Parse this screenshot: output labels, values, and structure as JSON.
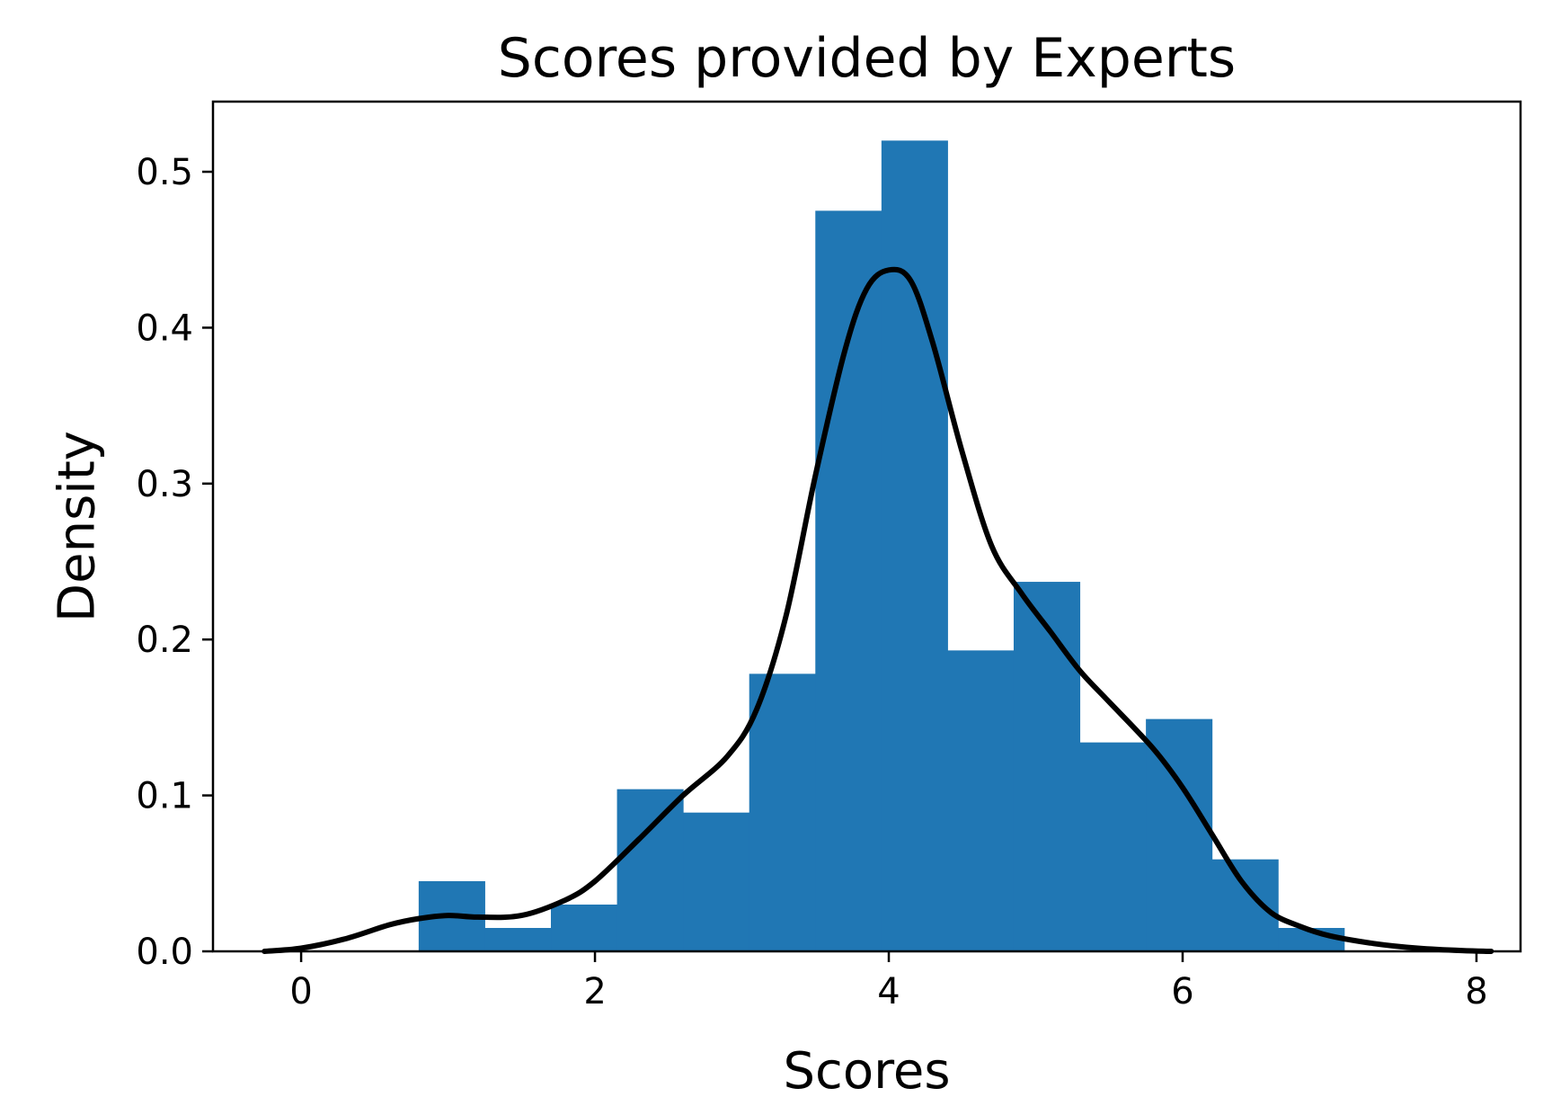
{
  "chart_data": {
    "type": "bar",
    "title": "Scores provided by Experts",
    "xlabel": "Scores",
    "ylabel": "Density",
    "xlim": [
      -0.6,
      8.3
    ],
    "ylim": [
      0,
      0.545
    ],
    "xticks": [
      0,
      2,
      4,
      6,
      8
    ],
    "xtick_labels": [
      "0",
      "2",
      "4",
      "6",
      "8"
    ],
    "yticks": [
      0.0,
      0.1,
      0.2,
      0.3,
      0.4,
      0.5
    ],
    "ytick_labels": [
      "0.0",
      "0.1",
      "0.2",
      "0.3",
      "0.4",
      "0.5"
    ],
    "grid": false,
    "histogram": {
      "bin_edges": [
        0.8,
        1.25,
        1.7,
        2.15,
        2.6,
        3.05,
        3.5,
        3.95,
        4.4,
        4.85,
        5.3,
        5.75,
        6.2,
        6.65,
        7.1
      ],
      "values": [
        0.045,
        0.015,
        0.03,
        0.104,
        0.089,
        0.178,
        0.475,
        0.52,
        0.193,
        0.237,
        0.134,
        0.149,
        0.059,
        0.015
      ],
      "color": "#2077b4"
    },
    "kde_curve": {
      "color": "#000000",
      "x": [
        -0.25,
        0.0,
        0.3,
        0.6,
        0.8,
        1.0,
        1.2,
        1.5,
        1.8,
        2.0,
        2.3,
        2.6,
        2.9,
        3.1,
        3.3,
        3.5,
        3.7,
        3.85,
        4.0,
        4.15,
        4.3,
        4.5,
        4.7,
        4.9,
        5.1,
        5.3,
        5.5,
        5.8,
        6.0,
        6.2,
        6.4,
        6.6,
        6.8,
        7.0,
        7.3,
        7.6,
        7.9,
        8.1
      ],
      "y": [
        0.0,
        0.002,
        0.008,
        0.017,
        0.021,
        0.023,
        0.022,
        0.023,
        0.033,
        0.045,
        0.072,
        0.1,
        0.125,
        0.155,
        0.215,
        0.305,
        0.385,
        0.425,
        0.437,
        0.43,
        0.39,
        0.32,
        0.26,
        0.23,
        0.205,
        0.18,
        0.16,
        0.13,
        0.105,
        0.075,
        0.045,
        0.025,
        0.016,
        0.01,
        0.005,
        0.002,
        0.0005,
        0.0
      ]
    }
  }
}
